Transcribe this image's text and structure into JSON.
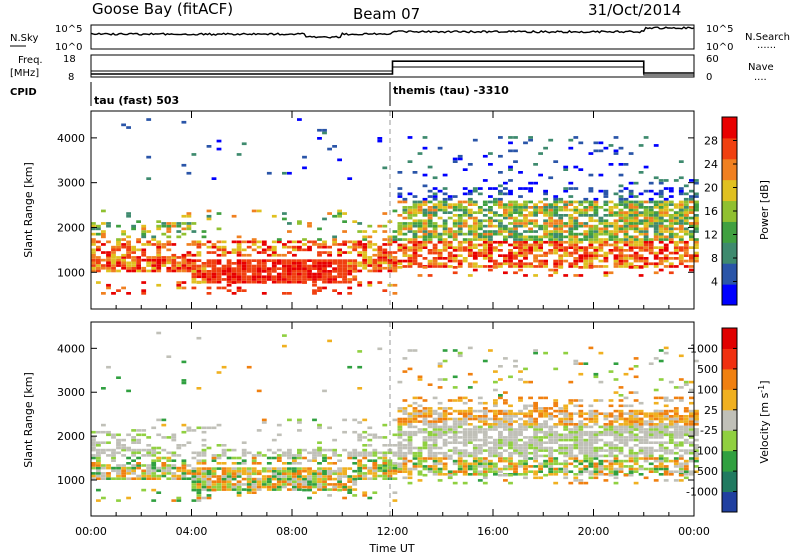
{
  "header": {
    "station": "Goose Bay (fitACF)",
    "beam": "Beam 07",
    "date": "31/Oct/2014"
  },
  "noise_panel": {
    "left_label": "N.Sky",
    "left_ticks": [
      "10^5",
      "10^0"
    ],
    "right_label": "N.Search",
    "right_ticks": [
      "10^5",
      "10^0"
    ],
    "right_dots": "......",
    "level_before_noon": 0.62,
    "level_after_noon": 0.72,
    "level_after_22": 0.88
  },
  "freq_panel": {
    "left_label_1": "Freq.",
    "left_label_2": "[MHz]",
    "left_ticks": [
      "18",
      "8"
    ],
    "right_label": "Nave",
    "right_ticks": [
      "60",
      "0"
    ],
    "right_dots": "....",
    "freq_step_fraction": 0.32,
    "nave_step_fraction": 0.72,
    "step_start_hour": 12.0,
    "step_end_hour": 22.0
  },
  "cpid_panel": {
    "label": "CPID",
    "entries": [
      {
        "hour": 0,
        "text": "tau (fast) 503"
      },
      {
        "hour": 12,
        "text": "themis (tau) -3310"
      }
    ]
  },
  "x_axis": {
    "label": "Time UT",
    "ticks": [
      "00:00",
      "04:00",
      "08:00",
      "12:00",
      "16:00",
      "20:00",
      "00:00"
    ],
    "tick_hours": [
      0,
      4,
      8,
      12,
      16,
      20,
      24
    ],
    "range": [
      0,
      24
    ]
  },
  "chart_data": [
    {
      "type": "heatmap",
      "quantity": "Power",
      "ylabel": "Slant Range [km]",
      "y_ticks": [
        "1000",
        "2000",
        "3000",
        "4000"
      ],
      "y_tick_values": [
        1000,
        2000,
        3000,
        4000
      ],
      "ylim": [
        180,
        4600
      ],
      "colorbar_label": "Power [dB]",
      "colorbar_ticks": [
        "28",
        "24",
        "20",
        "16",
        "12",
        "8",
        "4"
      ],
      "colorbar_values": [
        28,
        24,
        20,
        16,
        12,
        8,
        4
      ],
      "colorbar_range": [
        0,
        32
      ],
      "colors": [
        "#0000ff",
        "#2a55a8",
        "#3e8a6e",
        "#40a040",
        "#90c030",
        "#e0c020",
        "#f08020",
        "#f04010",
        "#e80000"
      ]
    },
    {
      "type": "heatmap",
      "quantity": "Velocity",
      "ylabel": "Slant Range [km]",
      "y_ticks": [
        "1000",
        "2000",
        "3000",
        "4000"
      ],
      "y_tick_values": [
        1000,
        2000,
        3000,
        4000
      ],
      "ylim": [
        180,
        4600
      ],
      "colorbar_label": "Velocity [m s^-1]",
      "colorbar_ticks": [
        "1000",
        "500",
        "100",
        "25",
        "-25",
        "-100",
        "-500",
        "-1000"
      ],
      "colors": [
        "#2040a0",
        "#207a60",
        "#30a040",
        "#90d040",
        "#c0c0b8",
        "#f0b020",
        "#f08010",
        "#f03010",
        "#e00000"
      ]
    }
  ]
}
